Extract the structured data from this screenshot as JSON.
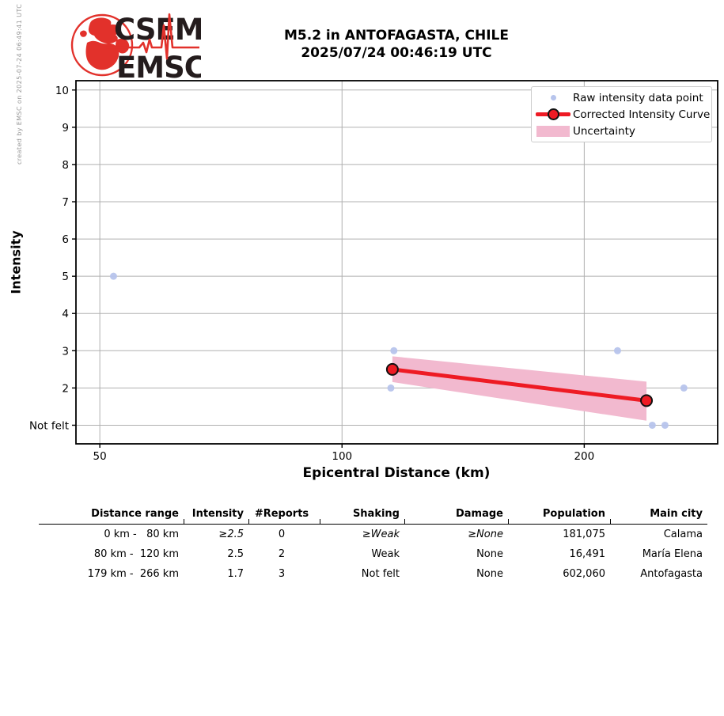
{
  "credit": "created by EMSC on 2025-07-24 06:49:41 UTC",
  "logo": {
    "line1": "CSEM",
    "line2": "EMSC",
    "red": "#e2312b",
    "dark": "#241c1d"
  },
  "title": {
    "line1": "M5.2 in ANTOFAGASTA, CHILE",
    "line2": "2025/07/24 00:46:19 UTC"
  },
  "legend": {
    "items": [
      {
        "label": "Raw intensity data point",
        "marker": "dot"
      },
      {
        "label": "Corrected Intensity Curve",
        "marker": "line-circle"
      },
      {
        "label": "Uncertainty",
        "marker": "patch"
      }
    ]
  },
  "colors": {
    "raw_point": "#b7c4ec",
    "curve_red": "#ee1b24",
    "marker_edge": "#111111",
    "uncertainty_pink": "#f2b9cf",
    "grid": "#b0b0b0",
    "axis": "#000000"
  },
  "chart_data": {
    "type": "scatter-line-band",
    "title": "M5.2 in ANTOFAGASTA, CHILE 2025/07/24 00:46:19 UTC",
    "xlabel": "Epicentral Distance (km)",
    "ylabel": "Intensity",
    "xscale": "log",
    "xlim": [
      46.7,
      293
    ],
    "ylim": [
      0.5,
      10.25
    ],
    "grid": true,
    "legend_position": "upper right",
    "xticks": [
      {
        "value": 50,
        "label": "50"
      },
      {
        "value": 100,
        "label": "100"
      },
      {
        "value": 200,
        "label": "200"
      }
    ],
    "yticks": [
      {
        "value": 1,
        "label": "Not felt"
      },
      {
        "value": 2,
        "label": "2"
      },
      {
        "value": 3,
        "label": "3"
      },
      {
        "value": 4,
        "label": "4"
      },
      {
        "value": 5,
        "label": "5"
      },
      {
        "value": 6,
        "label": "6"
      },
      {
        "value": 7,
        "label": "7"
      },
      {
        "value": 8,
        "label": "8"
      },
      {
        "value": 9,
        "label": "9"
      },
      {
        "value": 10,
        "label": "10"
      }
    ],
    "raw_points": [
      {
        "x": 52,
        "y": 5
      },
      {
        "x": 115,
        "y": 2
      },
      {
        "x": 116,
        "y": 3
      },
      {
        "x": 220,
        "y": 3
      },
      {
        "x": 243,
        "y": 1
      },
      {
        "x": 252,
        "y": 1
      },
      {
        "x": 266,
        "y": 2
      }
    ],
    "corrected_curve": [
      {
        "x": 115.5,
        "y": 2.5
      },
      {
        "x": 239,
        "y": 1.66
      }
    ],
    "uncertainty_band": {
      "x": [
        115.5,
        239
      ],
      "upper": [
        2.85,
        2.17
      ],
      "lower": [
        2.16,
        1.12
      ]
    }
  },
  "table": {
    "headers": [
      "Distance range",
      "Intensity",
      "#Reports",
      "Shaking",
      "Damage",
      "Population",
      "Main city"
    ],
    "rows": [
      [
        "0 km -   80 km",
        "≥2.5",
        "0",
        "≥Weak",
        "≥None",
        "181,075",
        "Calama"
      ],
      [
        "80 km -  120 km",
        "2.5",
        "2",
        "Weak",
        "None",
        "16,491",
        "María Elena"
      ],
      [
        "179 km -  266 km",
        "1.7",
        "3",
        "Not felt",
        "None",
        "602,060",
        "Antofagasta"
      ]
    ]
  }
}
